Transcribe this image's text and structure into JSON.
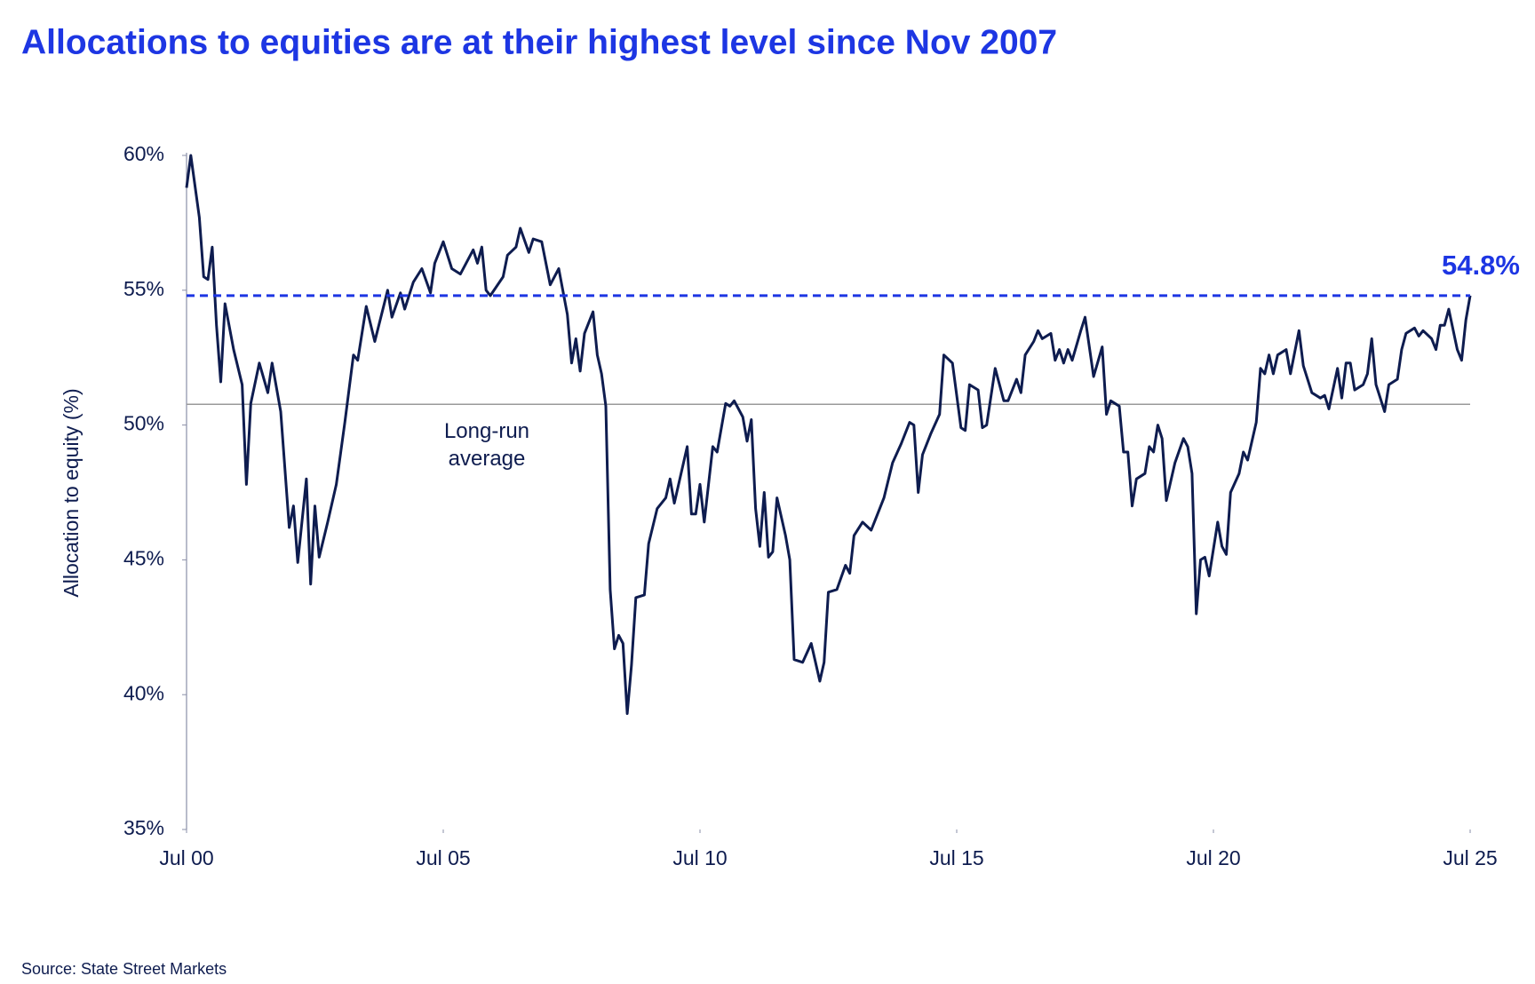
{
  "chart_data": {
    "type": "line",
    "title": "Allocations to equities are at their highest level since Nov 2007",
    "y_label": "Allocation to equity (%)",
    "source": "Source: State Street Markets",
    "color": "#0e1c4f",
    "x": [
      "2000-07",
      "2000-08",
      "2000-10",
      "2000-11",
      "2000-12",
      "2001-01",
      "2001-02",
      "2001-03",
      "2001-04",
      "2001-06",
      "2001-08",
      "2001-09",
      "2001-10",
      "2001-12",
      "2002-02",
      "2002-03",
      "2002-05",
      "2002-07",
      "2002-08",
      "2002-09",
      "2002-11",
      "2002-12",
      "2003-01",
      "2003-02",
      "2003-04",
      "2003-06",
      "2003-08",
      "2003-10",
      "2003-11",
      "2004-01",
      "2004-03",
      "2004-06",
      "2004-07",
      "2004-09",
      "2004-10",
      "2004-12",
      "2005-02",
      "2005-04",
      "2005-05",
      "2005-07",
      "2005-09",
      "2005-11",
      "2006-02",
      "2006-03",
      "2006-04",
      "2006-05",
      "2006-06",
      "2006-09",
      "2006-10",
      "2006-12",
      "2007-01",
      "2007-03",
      "2007-04",
      "2007-06",
      "2007-08",
      "2007-10",
      "2007-12",
      "2008-01",
      "2008-02",
      "2008-03",
      "2008-04",
      "2008-06",
      "2008-07",
      "2008-08",
      "2008-09",
      "2008-10",
      "2008-11",
      "2008-12",
      "2009-01",
      "2009-02",
      "2009-03",
      "2009-04",
      "2009-06",
      "2009-07",
      "2009-09",
      "2009-11",
      "2009-12",
      "2010-01",
      "2010-04",
      "2010-05",
      "2010-06",
      "2010-07",
      "2010-08",
      "2010-10",
      "2010-11",
      "2011-01",
      "2011-02",
      "2011-03",
      "2011-05",
      "2011-06",
      "2011-07",
      "2011-08",
      "2011-09",
      "2011-10",
      "2011-11",
      "2011-12",
      "2012-01",
      "2012-03",
      "2012-04",
      "2012-05",
      "2012-07",
      "2012-09",
      "2012-11",
      "2012-12",
      "2013-01",
      "2013-03",
      "2013-05",
      "2013-06",
      "2013-07",
      "2013-09",
      "2013-11",
      "2013-12",
      "2014-02",
      "2014-04",
      "2014-06",
      "2014-08",
      "2014-09",
      "2014-10",
      "2014-11",
      "2015-01",
      "2015-03",
      "2015-04",
      "2015-06",
      "2015-08",
      "2015-09",
      "2015-10",
      "2015-12",
      "2016-01",
      "2016-02",
      "2016-04",
      "2016-06",
      "2016-07",
      "2016-09",
      "2016-10",
      "2016-11",
      "2017-01",
      "2017-02",
      "2017-03",
      "2017-05",
      "2017-06",
      "2017-07",
      "2017-08",
      "2017-09",
      "2017-10",
      "2017-12",
      "2018-01",
      "2018-03",
      "2018-05",
      "2018-06",
      "2018-07",
      "2018-09",
      "2018-10",
      "2018-11",
      "2018-12",
      "2019-01",
      "2019-03",
      "2019-04",
      "2019-05",
      "2019-06",
      "2019-07",
      "2019-08",
      "2019-10",
      "2019-12",
      "2020-01",
      "2020-02",
      "2020-03",
      "2020-04",
      "2020-05",
      "2020-06",
      "2020-08",
      "2020-09",
      "2020-10",
      "2020-11",
      "2021-01",
      "2021-02",
      "2021-03",
      "2021-05",
      "2021-06",
      "2021-07",
      "2021-08",
      "2021-09",
      "2021-10",
      "2021-12",
      "2022-01",
      "2022-03",
      "2022-04",
      "2022-06",
      "2022-08",
      "2022-09",
      "2022-10",
      "2022-12",
      "2023-01",
      "2023-02",
      "2023-03",
      "2023-04",
      "2023-06",
      "2023-07",
      "2023-08",
      "2023-09",
      "2023-11",
      "2023-12",
      "2024-02",
      "2024-03",
      "2024-04",
      "2024-06",
      "2024-07",
      "2024-08",
      "2024-10",
      "2024-11",
      "2024-12",
      "2025-01",
      "2025-02",
      "2025-04",
      "2025-05",
      "2025-06",
      "2025-07"
    ],
    "values": [
      58.8,
      60.0,
      57.7,
      55.5,
      55.4,
      56.6,
      53.7,
      51.6,
      54.5,
      52.8,
      51.5,
      47.8,
      50.8,
      52.3,
      51.2,
      52.3,
      50.5,
      46.2,
      47.0,
      44.9,
      48.0,
      44.1,
      47.0,
      45.1,
      46.4,
      47.8,
      50.1,
      52.6,
      52.4,
      54.4,
      53.1,
      55.0,
      54.0,
      54.9,
      54.3,
      55.3,
      55.8,
      54.9,
      56.0,
      56.8,
      55.8,
      55.6,
      56.5,
      56.0,
      56.6,
      55.0,
      54.8,
      55.5,
      56.3,
      56.6,
      57.3,
      56.4,
      56.9,
      56.8,
      55.2,
      55.8,
      54.1,
      52.3,
      53.2,
      52.0,
      53.4,
      54.2,
      52.6,
      51.9,
      50.7,
      43.9,
      41.7,
      42.2,
      41.9,
      39.3,
      41.1,
      43.6,
      43.7,
      45.6,
      46.9,
      47.3,
      48.0,
      47.1,
      49.2,
      46.7,
      46.7,
      47.8,
      46.4,
      49.2,
      49.0,
      50.8,
      50.7,
      50.9,
      50.3,
      49.4,
      50.2,
      46.9,
      45.5,
      47.5,
      45.1,
      45.3,
      47.3,
      45.9,
      45.0,
      41.3,
      41.2,
      41.9,
      40.5,
      41.2,
      43.8,
      43.9,
      44.8,
      44.5,
      45.9,
      46.4,
      46.1,
      46.5,
      47.3,
      48.6,
      49.3,
      50.1,
      50.0,
      47.5,
      48.9,
      49.7,
      50.4,
      52.6,
      52.3,
      49.9,
      49.8,
      51.5,
      51.3,
      49.9,
      50.0,
      52.1,
      50.9,
      50.9,
      51.7,
      51.2,
      52.6,
      53.1,
      53.5,
      53.2,
      53.4,
      52.4,
      52.8,
      52.3,
      52.8,
      52.4,
      53.5,
      54.0,
      51.8,
      52.9,
      50.4,
      50.9,
      50.7,
      49.0,
      49.0,
      47.0,
      48.0,
      48.2,
      49.2,
      49.0,
      50.0,
      49.5,
      47.2,
      48.6,
      49.5,
      49.2,
      48.2,
      43.0,
      45.0,
      45.1,
      44.4,
      46.4,
      45.5,
      45.2,
      47.5,
      48.2,
      49.0,
      48.7,
      50.1,
      52.1,
      51.9,
      52.6,
      51.9,
      52.6,
      52.8,
      51.9,
      53.5,
      52.2,
      51.2,
      51.0,
      51.1,
      50.6,
      52.1,
      51.0,
      52.3,
      52.3,
      51.3,
      51.5,
      51.9,
      53.2,
      51.5,
      50.5,
      51.5,
      51.7,
      52.8,
      53.4,
      53.6,
      53.3,
      53.5,
      53.2,
      52.8,
      53.7,
      53.7,
      54.3,
      52.8,
      52.4,
      53.9,
      54.8
    ],
    "xlim": [
      "2000-07",
      "2025-07"
    ],
    "xticks": [
      {
        "value": "2000-07",
        "label": "Jul 00"
      },
      {
        "value": "2005-07",
        "label": "Jul 05"
      },
      {
        "value": "2010-07",
        "label": "Jul 10"
      },
      {
        "value": "2015-07",
        "label": "Jul 15"
      },
      {
        "value": "2020-07",
        "label": "Jul 20"
      },
      {
        "value": "2025-07",
        "label": "Jul 25"
      }
    ],
    "ylim": [
      35,
      60
    ],
    "yticks": [
      {
        "value": 35,
        "label": "35%"
      },
      {
        "value": 40,
        "label": "40%"
      },
      {
        "value": 45,
        "label": "45%"
      },
      {
        "value": 50,
        "label": "50%"
      },
      {
        "value": 55,
        "label": "55%"
      },
      {
        "value": 60,
        "label": "60%"
      }
    ],
    "average": {
      "value": 50.77,
      "label": "Long-run average",
      "color": "#9a9a9a"
    },
    "latest": {
      "value": 54.8,
      "label": "54.8%",
      "color": "#1d36e3"
    }
  }
}
